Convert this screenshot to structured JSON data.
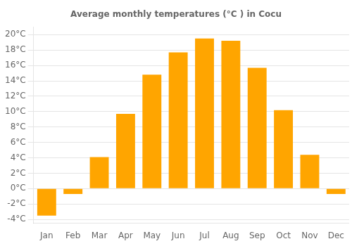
{
  "chart_data": {
    "type": "bar",
    "title": "Average monthly temperatures (°C ) in Cocu",
    "categories": [
      "Jan",
      "Feb",
      "Mar",
      "Apr",
      "May",
      "Jun",
      "Jul",
      "Aug",
      "Sep",
      "Oct",
      "Nov",
      "Dec"
    ],
    "values": [
      -3.5,
      -0.7,
      4.1,
      9.7,
      14.8,
      17.7,
      19.5,
      19.2,
      15.7,
      10.2,
      4.4,
      -0.7
    ],
    "color": "#FFA500",
    "ylim": [
      -4.5,
      21.0
    ],
    "yticks": [
      {
        "value": -4,
        "label": "-4°C"
      },
      {
        "value": -2,
        "label": "-2°C"
      },
      {
        "value": 0,
        "label": "0°C"
      },
      {
        "value": 2,
        "label": "2°C"
      },
      {
        "value": 4,
        "label": "4°C"
      },
      {
        "value": 6,
        "label": "6°C"
      },
      {
        "value": 8,
        "label": "8°C"
      },
      {
        "value": 10,
        "label": "10°C"
      },
      {
        "value": 12,
        "label": "12°C"
      },
      {
        "value": 14,
        "label": "14°C"
      },
      {
        "value": 16,
        "label": "16°C"
      },
      {
        "value": 18,
        "label": "18°C"
      },
      {
        "value": 20,
        "label": "20°C"
      }
    ],
    "grid": true
  }
}
